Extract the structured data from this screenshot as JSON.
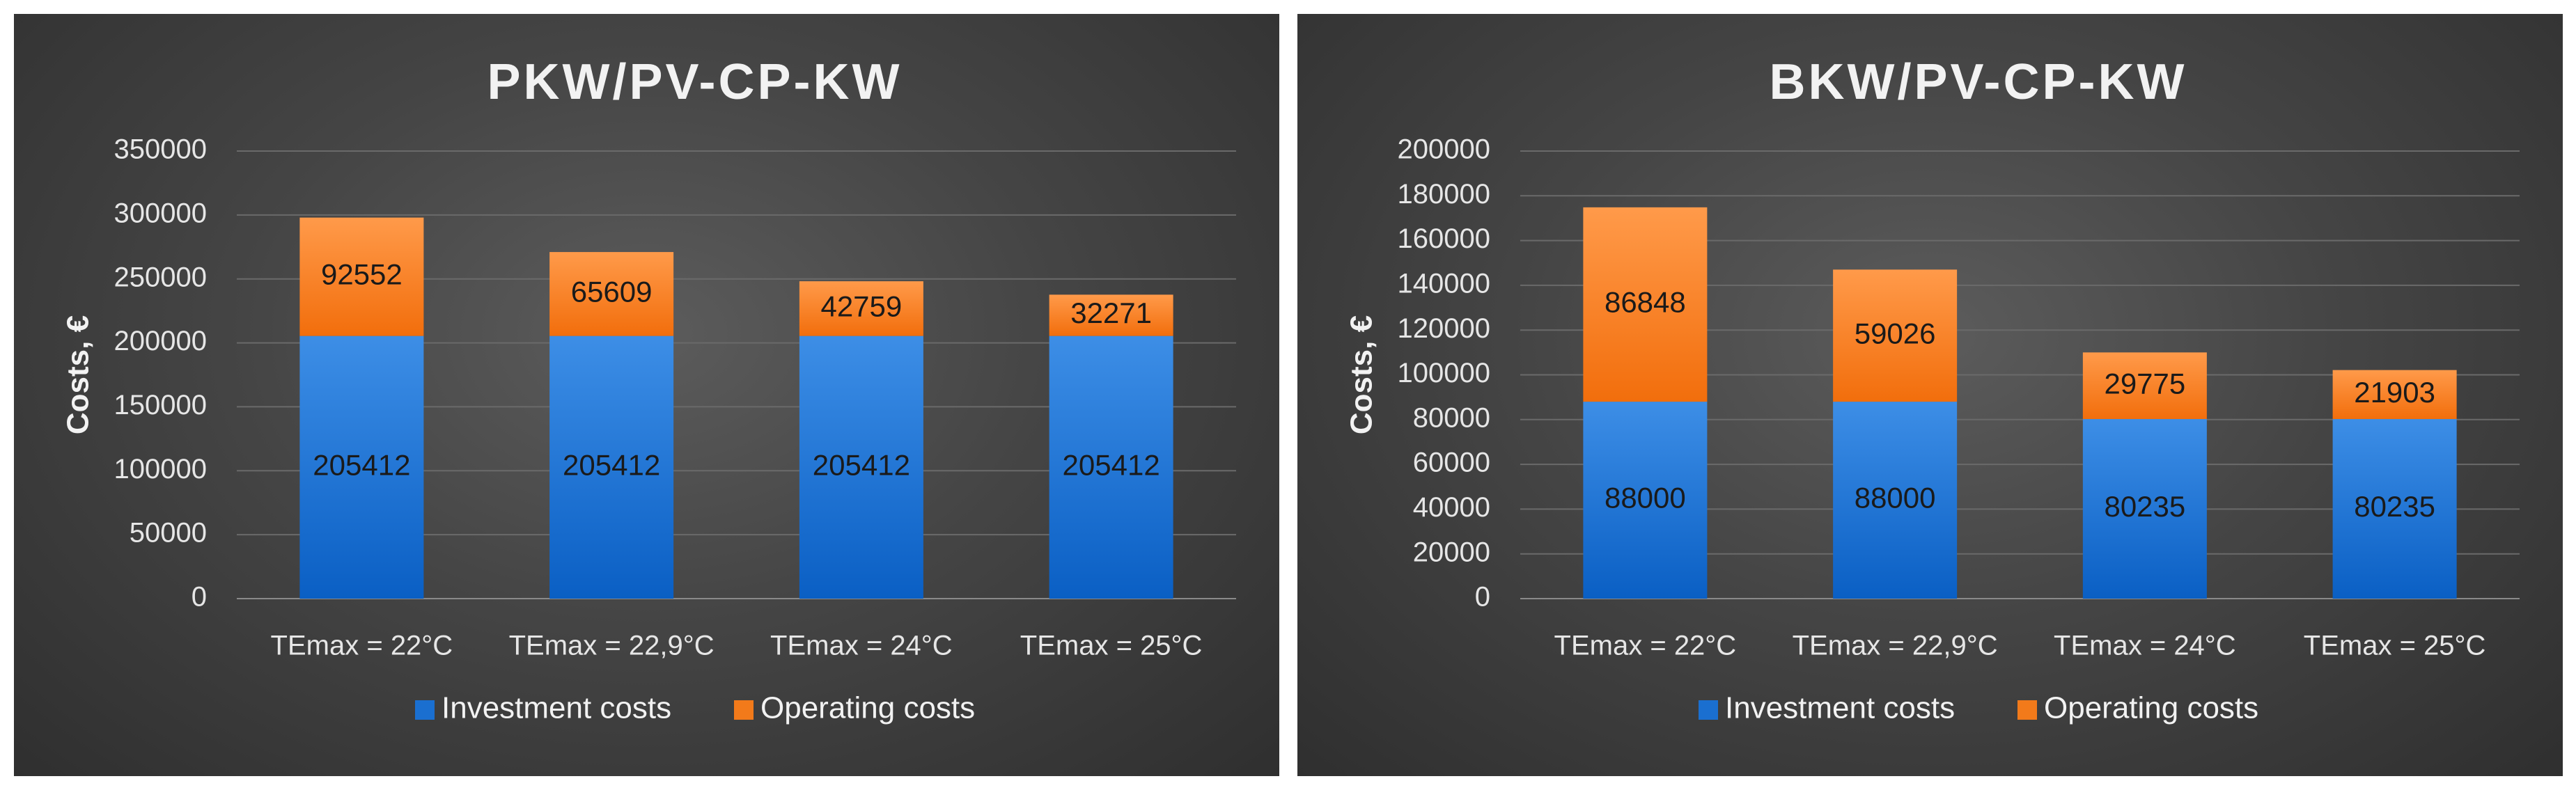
{
  "chart_data": [
    {
      "type": "bar",
      "stacked": true,
      "title": "PKW/PV-CP-KW",
      "ylabel": "Costs, €",
      "xlabel": "",
      "categories": [
        "TEmax = 22°C",
        "TEmax = 22,9°C",
        "TEmax = 24°C",
        "TEmax = 25°C"
      ],
      "series": [
        {
          "name": "Investment costs",
          "color": "#1a6fd0",
          "values": [
            205412,
            205412,
            205412,
            205412
          ]
        },
        {
          "name": "Operating costs",
          "color": "#f27a1a",
          "values": [
            92552,
            65609,
            42759,
            32271
          ]
        }
      ],
      "ylim": [
        0,
        350000
      ],
      "yticks": [
        "0",
        "50000",
        "100000",
        "150000",
        "200000",
        "250000",
        "300000",
        "350000"
      ],
      "grid": true,
      "legend_position": "bottom"
    },
    {
      "type": "bar",
      "stacked": true,
      "title": "BKW/PV-CP-KW",
      "ylabel": "Costs, €",
      "xlabel": "",
      "categories": [
        "TEmax = 22°C",
        "TEmax = 22,9°C",
        "TEmax = 24°C",
        "TEmax = 25°C"
      ],
      "series": [
        {
          "name": "Investment costs",
          "color": "#1a6fd0",
          "values": [
            88000,
            88000,
            80235,
            80235
          ]
        },
        {
          "name": "Operating costs",
          "color": "#f27a1a",
          "values": [
            86848,
            59026,
            29775,
            21903
          ]
        }
      ],
      "ylim": [
        0,
        200000
      ],
      "yticks": [
        "0",
        "20000",
        "40000",
        "60000",
        "80000",
        "100000",
        "120000",
        "140000",
        "160000",
        "180000",
        "200000"
      ],
      "grid": true,
      "legend_position": "bottom"
    }
  ]
}
